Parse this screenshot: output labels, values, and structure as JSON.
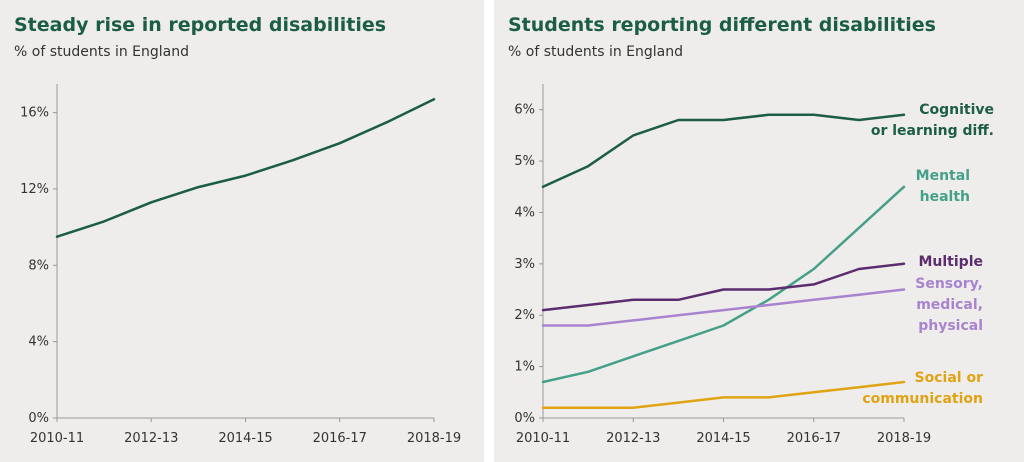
{
  "chart_data": [
    {
      "type": "line",
      "title": "Steady rise in reported disabilities",
      "subtitle": "% of students in England",
      "x": [
        "2010-11",
        "2011-12",
        "2012-13",
        "2013-14",
        "2014-15",
        "2015-16",
        "2016-17",
        "2017-18",
        "2018-19"
      ],
      "xticks": [
        "2010-11",
        "2012-13",
        "2014-15",
        "2016-17",
        "2018-19"
      ],
      "yticks": [
        "0%",
        "4%",
        "8%",
        "12%",
        "16%"
      ],
      "ylim": [
        0,
        17.5
      ],
      "series": [
        {
          "values": [
            9.5,
            10.3,
            11.3,
            12.1,
            12.7,
            13.5,
            14.4,
            15.5,
            16.7
          ],
          "color": "#1b5e43"
        }
      ]
    },
    {
      "type": "line",
      "title": "Students reporting different disabilities",
      "subtitle": "% of students in England",
      "x": [
        "2010-11",
        "2011-12",
        "2012-13",
        "2013-14",
        "2014-15",
        "2015-16",
        "2016-17",
        "2017-18",
        "2018-19"
      ],
      "xticks": [
        "2010-11",
        "2012-13",
        "2014-15",
        "2016-17",
        "2018-19"
      ],
      "yticks": [
        "0%",
        "1%",
        "2%",
        "3%",
        "4%",
        "5%",
        "6%"
      ],
      "ylim": [
        0,
        6.5
      ],
      "series": [
        {
          "name": "Cognitive or learning diff.",
          "label_lines": [
            "Cognitive",
            "or learning diff."
          ],
          "color": "#1b5e43",
          "values": [
            4.5,
            4.9,
            5.5,
            5.8,
            5.8,
            5.9,
            5.9,
            5.8,
            5.9
          ]
        },
        {
          "name": "Mental health",
          "label_lines": [
            "Mental",
            "health"
          ],
          "color": "#45a08a",
          "values": [
            0.7,
            0.9,
            1.2,
            1.5,
            1.8,
            2.3,
            2.9,
            3.7,
            4.5
          ]
        },
        {
          "name": "Multiple",
          "label_lines": [
            "Multiple"
          ],
          "color": "#5c2d6e",
          "values": [
            2.1,
            2.2,
            2.3,
            2.3,
            2.5,
            2.5,
            2.6,
            2.9,
            3.0
          ]
        },
        {
          "name": "Sensory, medical, physical",
          "label_lines": [
            "Sensory,",
            "medical,",
            "physical"
          ],
          "color": "#a884cf",
          "values": [
            1.8,
            1.8,
            1.9,
            2.0,
            2.1,
            2.2,
            2.3,
            2.4,
            2.5
          ]
        },
        {
          "name": "Social or communication",
          "label_lines": [
            "Social or",
            "communication"
          ],
          "color": "#e0a313",
          "values": [
            0.2,
            0.2,
            0.2,
            0.3,
            0.4,
            0.4,
            0.5,
            0.6,
            0.7
          ]
        }
      ]
    }
  ]
}
